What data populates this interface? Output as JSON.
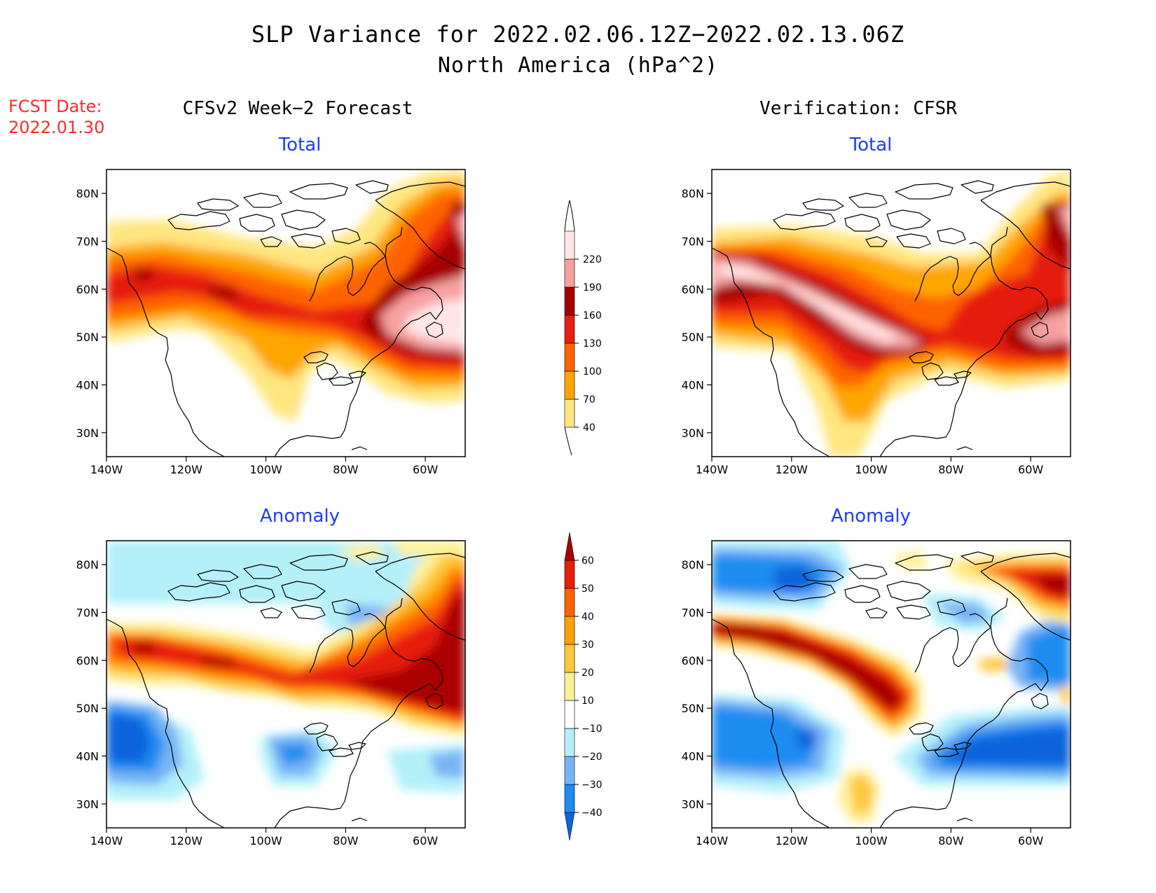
{
  "title_line1": "SLP Variance for 2022.02.06.12Z−2022.02.13.06Z",
  "title_line2": "North America (hPa^2)",
  "fcst_date_label": "FCST Date:",
  "fcst_date_value": "2022.01.30",
  "col_left_title": "CFSv2 Week−2 Forecast",
  "col_right_title": "Verification: CFSR",
  "panel_titles": {
    "total": "Total",
    "anomaly": "Anomaly"
  },
  "axes": {
    "lat_labels": [
      "30N",
      "40N",
      "50N",
      "60N",
      "70N",
      "80N"
    ],
    "lon_labels": [
      "140W",
      "120W",
      "100W",
      "80W",
      "60W"
    ],
    "lat_range": [
      25,
      85
    ],
    "lon_range": [
      -140,
      -50
    ]
  },
  "total_colorbar": {
    "levels": [
      "40",
      "70",
      "100",
      "130",
      "160",
      "190",
      "220"
    ],
    "colors": [
      "#ffe680",
      "#ffa500",
      "#ff6400",
      "#e51e10",
      "#a50000",
      "#f7a0a0",
      "#ffe6e6"
    ]
  },
  "anomaly_colorbar": {
    "levels": [
      "−40",
      "−30",
      "−20",
      "−10",
      "10",
      "20",
      "30",
      "40",
      "50",
      "60"
    ],
    "colors": [
      "#0a64dc",
      "#1e8cf0",
      "#78b4f5",
      "#b4f0fa",
      "#ffffff",
      "#fff096",
      "#ffc83c",
      "#ffa000",
      "#ff6400",
      "#e61e0a",
      "#aa0000"
    ]
  },
  "colors": {
    "fcst_date": "#ff2a2a",
    "panel_title": "#1e3cff"
  }
}
